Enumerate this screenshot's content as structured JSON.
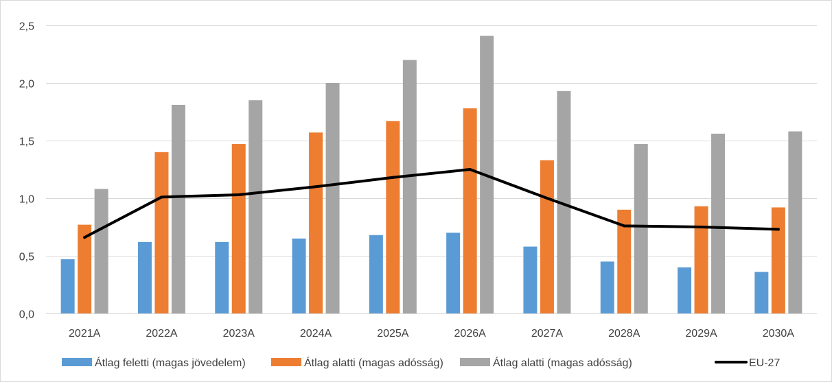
{
  "chart_data": {
    "type": "bar",
    "title": "",
    "xlabel": "",
    "ylabel": "",
    "categories": [
      "2021A",
      "2022A",
      "2023A",
      "2024A",
      "2025A",
      "2026A",
      "2027A",
      "2028A",
      "2029A",
      "2030A"
    ],
    "ylim": [
      0,
      2.5
    ],
    "yticks": [
      "0,0",
      "0,5",
      "1,0",
      "1,5",
      "2,0",
      "2,5"
    ],
    "grid": true,
    "legend_position": "bottom",
    "series": [
      {
        "name": "Átlag feletti (magas jövedelem)",
        "kind": "bar",
        "color": "#5b9bd5",
        "values": [
          0.47,
          0.62,
          0.62,
          0.65,
          0.68,
          0.7,
          0.58,
          0.45,
          0.4,
          0.36
        ]
      },
      {
        "name": "Átlag alatti (magas adósság)",
        "kind": "bar",
        "color": "#ed7d31",
        "values": [
          0.77,
          1.4,
          1.47,
          1.57,
          1.67,
          1.78,
          1.33,
          0.9,
          0.93,
          0.92
        ]
      },
      {
        "name": "Átlag alatti (magas adósság)",
        "kind": "bar",
        "color": "#a5a5a5",
        "values": [
          1.08,
          1.81,
          1.85,
          2.0,
          2.2,
          2.41,
          1.93,
          1.47,
          1.56,
          1.58
        ]
      },
      {
        "name": "EU-27",
        "kind": "line",
        "color": "#000000",
        "values": [
          0.66,
          1.01,
          1.03,
          1.1,
          1.18,
          1.25,
          1.0,
          0.76,
          0.75,
          0.73
        ]
      }
    ]
  }
}
